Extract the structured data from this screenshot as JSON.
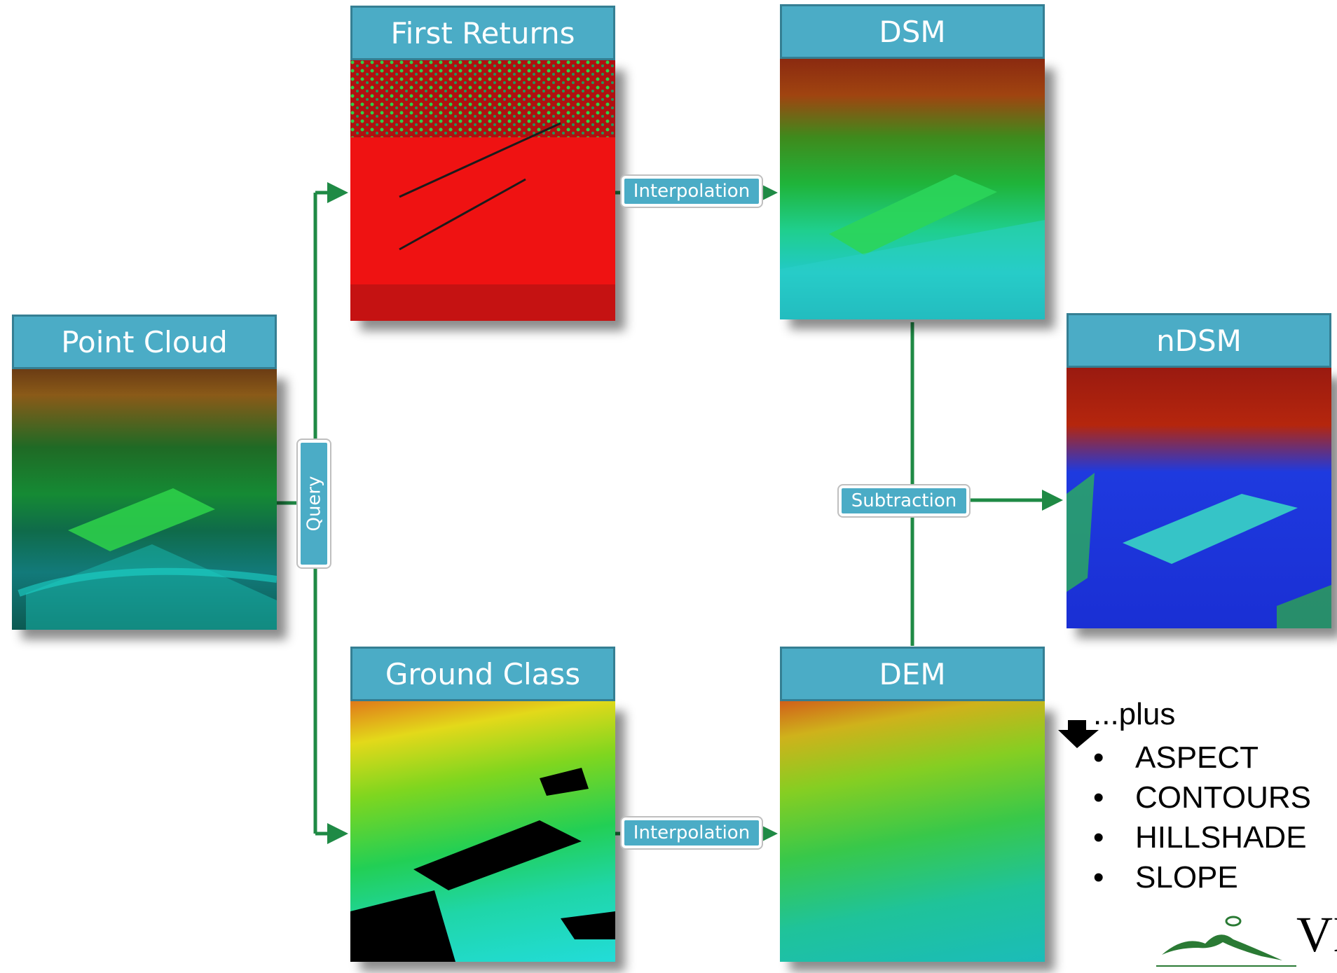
{
  "panels": {
    "point_cloud": "Point Cloud",
    "first_returns": "First Returns",
    "dsm": "DSM",
    "ndsm": "nDSM",
    "ground_class": "Ground Class",
    "dem": "DEM"
  },
  "connectors": {
    "query": "Query",
    "interpolation_top": "Interpolation",
    "interpolation_bottom": "Interpolation",
    "subtraction": "Subtraction"
  },
  "extras": {
    "heading": "...plus",
    "items": [
      "ASPECT",
      "CONTOURS",
      "HILLSHADE",
      "SLOPE"
    ],
    "bullet": "•"
  },
  "logo": {
    "text": "VI"
  },
  "colors": {
    "header_fill": "#4bacc6",
    "header_border": "#357f93",
    "connector": "#1f8a45"
  }
}
